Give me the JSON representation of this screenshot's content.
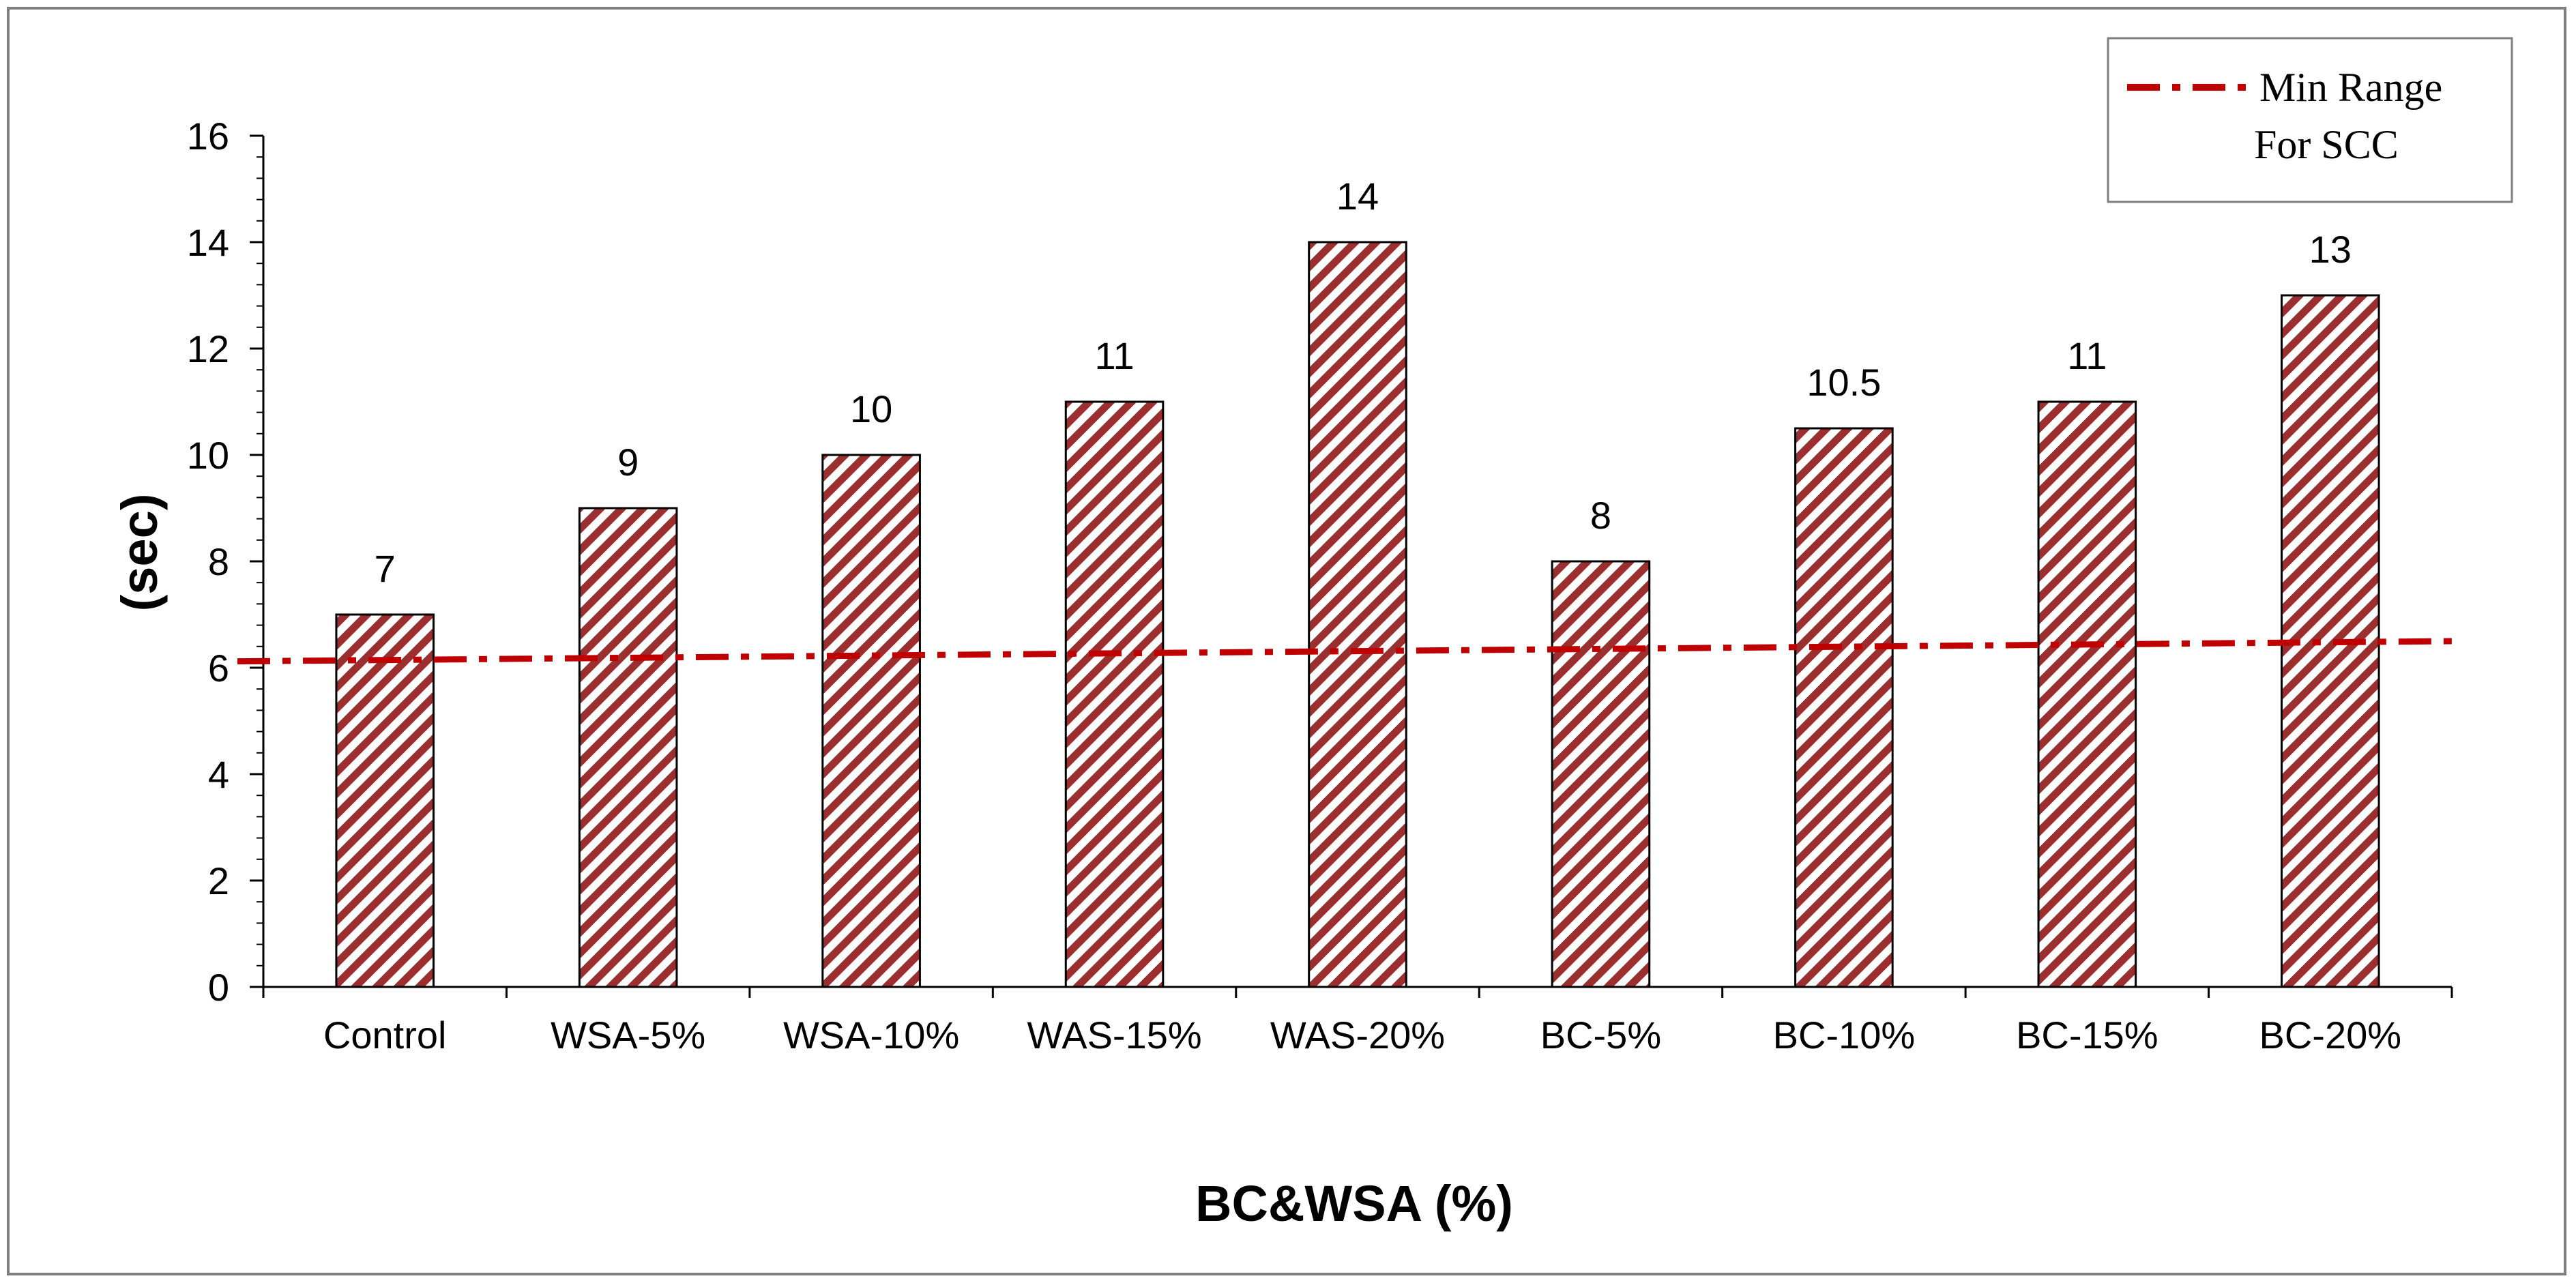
{
  "chart_data": {
    "type": "bar",
    "categories": [
      "Control",
      "WSA-5%",
      "WSA-10%",
      "WAS-15%",
      "WAS-20%",
      "BC-5%",
      "BC-10%",
      "BC-15%",
      "BC-20%"
    ],
    "values": [
      7,
      9,
      10,
      11,
      14,
      8,
      10.5,
      11,
      13
    ],
    "data_labels": [
      "7",
      "9",
      "10",
      "11",
      "14",
      "8",
      "10.5",
      "11",
      "13"
    ],
    "xlabel": "BC&WSA (%)",
    "ylabel": "(sec)",
    "ylim": [
      0,
      16
    ],
    "yticks": [
      0,
      2,
      4,
      6,
      8,
      10,
      12,
      14,
      16
    ],
    "ytick_labels": [
      "0",
      "2",
      "4",
      "6",
      "8",
      "10",
      "12",
      "14",
      "16"
    ],
    "grid": false,
    "bar_style": "diagonal-hatch",
    "bar_color": "#9b2f2f",
    "reference_line": {
      "label_line1": "Min Range",
      "label_line2": "For SCC",
      "style": "dash-dot",
      "color": "#c00000",
      "y_start": 6.12,
      "y_end": 6.5
    },
    "legend": {
      "position": "top-right"
    }
  }
}
